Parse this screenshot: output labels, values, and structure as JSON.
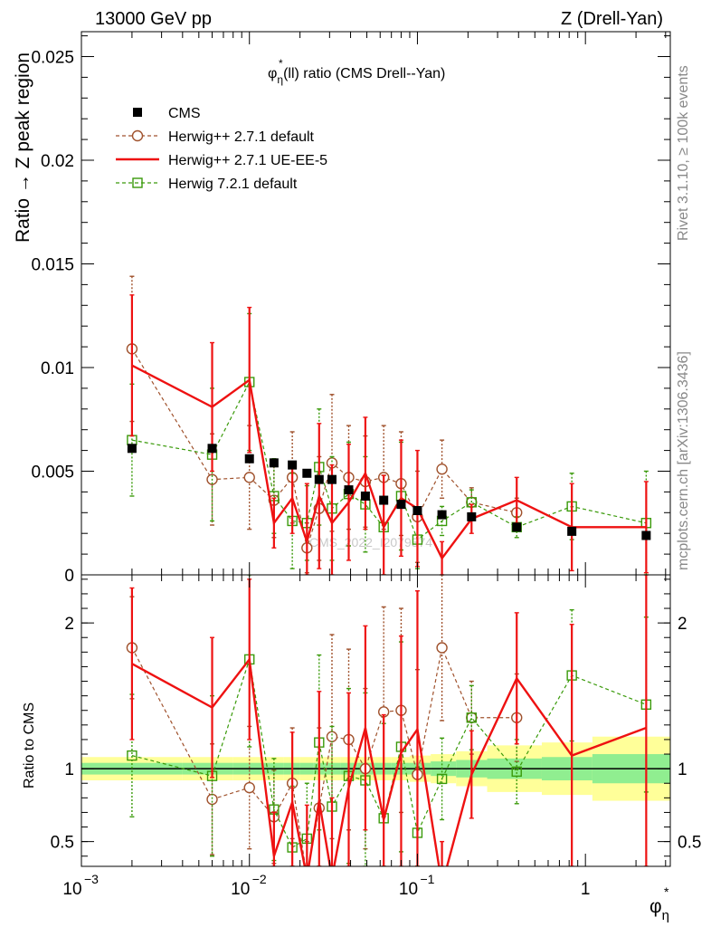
{
  "header": {
    "left": "13000 GeV pp",
    "right": "Z (Drell-Yan)",
    "side_top": "Rivet 3.1.10, ≥ 100k events",
    "side_bottom": "mcplots.cern.ch [arXiv:1306.3436]",
    "watermark": "CMS_2022_I2079374"
  },
  "colors": {
    "cms": "#000000",
    "herwig_271_default": "#a0522d",
    "herwig_271_ueee5": "#ee1111",
    "herwig_721_default": "#3a9a0a",
    "band_inner": "#90ee90",
    "band_outer": "#ffff99"
  },
  "chart_data": [
    {
      "type": "line",
      "title": "φ*η(ll) ratio (CMS Drell--Yan)",
      "title_parts": {
        "phi": "φ",
        "star": "*",
        "eta": "η",
        "rest": "(ll) ratio (CMS Drell--Yan)"
      },
      "ylabel": "Ratio → Z peak region",
      "xscale": "log",
      "xlim": [
        0.001,
        3.2
      ],
      "ylim": [
        0,
        0.0262
      ],
      "yticks": [
        0,
        0.005,
        0.01,
        0.015,
        0.02,
        0.025
      ],
      "ytick_labels": [
        "0",
        "0.005",
        "0.01",
        "0.015",
        "0.02",
        "0.025"
      ],
      "legend_position": "top-left",
      "x": [
        0.002,
        0.006,
        0.01,
        0.014,
        0.018,
        0.022,
        0.026,
        0.031,
        0.039,
        0.049,
        0.063,
        0.08,
        0.1,
        0.14,
        0.21,
        0.39,
        0.83,
        2.3
      ],
      "series": [
        {
          "name": "CMS",
          "style": "points",
          "values": [
            0.0061,
            0.0061,
            0.0056,
            0.0054,
            0.0053,
            0.0049,
            0.0046,
            0.0046,
            0.0041,
            0.0038,
            0.0036,
            0.0034,
            0.0031,
            0.0029,
            0.0028,
            0.0023,
            0.0021,
            0.0019
          ]
        },
        {
          "name": "Herwig++ 2.7.1 default",
          "style": "dashed-circle",
          "values": [
            0.0109,
            0.0046,
            0.0047,
            0.0036,
            0.0047,
            0.0013,
            0.0032,
            0.0054,
            0.0047,
            0.0045,
            0.0047,
            0.0044,
            0.0028,
            0.0051,
            0.0035,
            0.003,
            null,
            null
          ],
          "errors": [
            0.0035,
            0.0022,
            0.0025,
            0.0018,
            0.0022,
            0.0012,
            0.0025,
            0.0033,
            0.0025,
            0.0022,
            0.0025,
            0.0025,
            0.0022,
            0.0014,
            0.0007,
            0.0007,
            null,
            null
          ]
        },
        {
          "name": "Herwig++ 2.7.1 UE-EE-5",
          "style": "solid",
          "values": [
            0.0101,
            0.0081,
            0.0094,
            0.0025,
            0.0037,
            0.0016,
            0.0038,
            0.0025,
            0.0035,
            0.0049,
            0.0023,
            0.0037,
            0.0032,
            0.0008,
            0.0027,
            0.0036,
            0.0023,
            0.0023
          ],
          "errors": [
            0.0034,
            0.0031,
            0.0035,
            0.0012,
            0.0017,
            0.0028,
            0.0035,
            0.0028,
            0.0028,
            0.0027,
            0.0025,
            0.0028,
            0.0028,
            0.0008,
            0.0007,
            0.0011,
            0.0021,
            0.0022
          ]
        },
        {
          "name": "Herwig 7.2.1 default",
          "style": "dashed-square",
          "values": [
            0.0065,
            0.0058,
            0.0093,
            0.0038,
            0.0026,
            0.0025,
            0.0052,
            0.0032,
            0.0039,
            0.0034,
            0.0023,
            0.0038,
            0.0017,
            0.0026,
            0.0035,
            0.0023,
            0.0033,
            0.0025
          ],
          "errors": [
            0.0027,
            0.0032,
            0.0033,
            0.0018,
            0.0023,
            0.0018,
            0.0028,
            0.0025,
            0.0025,
            0.0023,
            0.0025,
            0.0026,
            0.0014,
            0.0007,
            0.0006,
            0.0005,
            0.0016,
            0.0025
          ]
        }
      ]
    },
    {
      "type": "line",
      "ylabel": "Ratio to CMS",
      "xlabel": "φ*η",
      "xlabel_parts": {
        "phi": "φ",
        "star": "*",
        "eta": "η"
      },
      "xscale": "log",
      "xlim": [
        0.001,
        3.2
      ],
      "ylim": [
        0.33,
        2.33
      ],
      "xticks": [
        0.001,
        0.01,
        0.1,
        1
      ],
      "xtick_labels": [
        {
          "base": "10",
          "exp": "−3"
        },
        {
          "base": "10",
          "exp": "−2"
        },
        {
          "base": "10",
          "exp": "−1"
        },
        {
          "base": "1",
          "exp": ""
        }
      ],
      "yticks": [
        0.5,
        1,
        2
      ],
      "ytick_labels": [
        "0.5",
        "1",
        "2"
      ],
      "reference_line": 1,
      "x": [
        0.002,
        0.006,
        0.01,
        0.014,
        0.018,
        0.022,
        0.026,
        0.031,
        0.039,
        0.049,
        0.063,
        0.08,
        0.1,
        0.14,
        0.21,
        0.39,
        0.83,
        2.3
      ],
      "series": [
        {
          "name": "Herwig++ 2.7.1 default",
          "style": "dashed-circle",
          "values": [
            1.83,
            0.79,
            0.87,
            0.67,
            0.9,
            0.26,
            0.73,
            1.22,
            1.2,
            1.0,
            1.39,
            1.4,
            0.96,
            1.83,
            1.35,
            1.35,
            null,
            null
          ],
          "errors": [
            0.35,
            0.38,
            0.42,
            0.32,
            0.38,
            0.24,
            0.55,
            0.7,
            0.62,
            0.55,
            0.72,
            0.7,
            0.72,
            0.5,
            0.25,
            0.3,
            null,
            null
          ]
        },
        {
          "name": "Herwig++ 2.7.1 UE-EE-5",
          "style": "solid",
          "values": [
            1.72,
            1.42,
            1.75,
            0.4,
            0.77,
            0.25,
            0.78,
            0.25,
            0.87,
            1.28,
            0.65,
            1.11,
            1.27,
            0.2,
            0.96,
            1.62,
            1.09,
            1.28
          ],
          "errors": [
            0.52,
            0.48,
            0.55,
            0.3,
            0.48,
            0.5,
            0.75,
            0.55,
            0.65,
            0.7,
            0.72,
            0.8,
            0.95,
            0.3,
            0.3,
            0.45,
            0.9,
            1.1
          ]
        },
        {
          "name": "Herwig 7.2.1 default",
          "style": "dashed-square",
          "values": [
            1.09,
            0.95,
            1.75,
            0.72,
            0.46,
            0.52,
            1.18,
            0.74,
            0.95,
            0.92,
            0.66,
            1.15,
            0.56,
            0.93,
            1.35,
            0.98,
            1.64,
            1.44
          ],
          "errors": [
            0.42,
            0.55,
            0.6,
            0.35,
            0.42,
            0.38,
            0.6,
            0.55,
            0.6,
            0.6,
            0.65,
            0.72,
            0.45,
            0.28,
            0.22,
            0.22,
            0.45,
            0.6
          ]
        }
      ],
      "band": {
        "edges": [
          0.001,
          0.004,
          0.008,
          0.012,
          0.016,
          0.02,
          0.024,
          0.028,
          0.035,
          0.044,
          0.056,
          0.07,
          0.09,
          0.12,
          0.17,
          0.26,
          0.55,
          1.1,
          3.2
        ],
        "inner": [
          0.04,
          0.04,
          0.04,
          0.04,
          0.04,
          0.04,
          0.04,
          0.04,
          0.04,
          0.04,
          0.04,
          0.04,
          0.04,
          0.05,
          0.06,
          0.07,
          0.08,
          0.1
        ],
        "outer": [
          0.08,
          0.08,
          0.08,
          0.08,
          0.08,
          0.08,
          0.08,
          0.08,
          0.08,
          0.08,
          0.08,
          0.08,
          0.09,
          0.1,
          0.12,
          0.16,
          0.18,
          0.22
        ]
      }
    }
  ]
}
